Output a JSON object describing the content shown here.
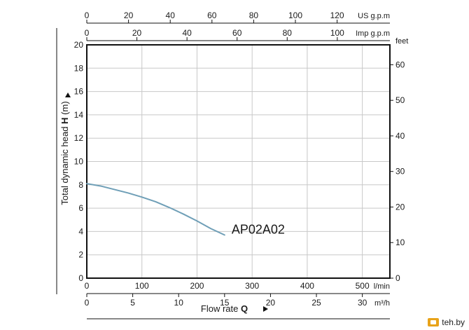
{
  "chart_data": {
    "type": "line",
    "series": [
      {
        "name": "AP02A02",
        "x": [
          0,
          25,
          50,
          75,
          100,
          125,
          150,
          175,
          200,
          225,
          250
        ],
        "y": [
          8.1,
          7.9,
          7.6,
          7.3,
          6.95,
          6.55,
          6.05,
          5.5,
          4.9,
          4.25,
          3.7
        ]
      }
    ],
    "y_label_prefix": "Total dynamic head ",
    "y_label_bold": "H",
    "y_label_suffix": " (m)",
    "x_label_prefix": "Flow rate ",
    "x_label_bold": "Q",
    "axes": {
      "lpm": {
        "unit": "l/min",
        "range": [
          0,
          550
        ],
        "ticks": [
          0,
          100,
          200,
          300,
          400,
          500
        ]
      },
      "m3h": {
        "unit": "m³/h",
        "range": [
          0,
          33
        ],
        "ticks": [
          0,
          5,
          10,
          15,
          20,
          25,
          30
        ]
      },
      "us_gpm": {
        "unit": "US g.p.m",
        "range": [
          0,
          145.3
        ],
        "ticks": [
          0,
          20,
          40,
          60,
          80,
          100,
          120
        ]
      },
      "imp_gpm": {
        "unit": "Imp g.p.m",
        "range": [
          0,
          121
        ],
        "ticks": [
          0,
          20,
          40,
          60,
          80,
          100
        ]
      },
      "head_m": {
        "range": [
          0,
          20
        ],
        "ticks": [
          0,
          2,
          4,
          6,
          8,
          10,
          12,
          14,
          16,
          18,
          20
        ]
      },
      "head_ft": {
        "unit": "feet",
        "range": [
          0,
          65.6
        ],
        "ticks": [
          0,
          10,
          20,
          30,
          40,
          50,
          60
        ]
      }
    },
    "grid": true,
    "colors": {
      "curve": "#6f9fb7",
      "grid": "#c8c8c8",
      "frame": "#111111"
    }
  },
  "watermark": {
    "text": "teh.by"
  }
}
